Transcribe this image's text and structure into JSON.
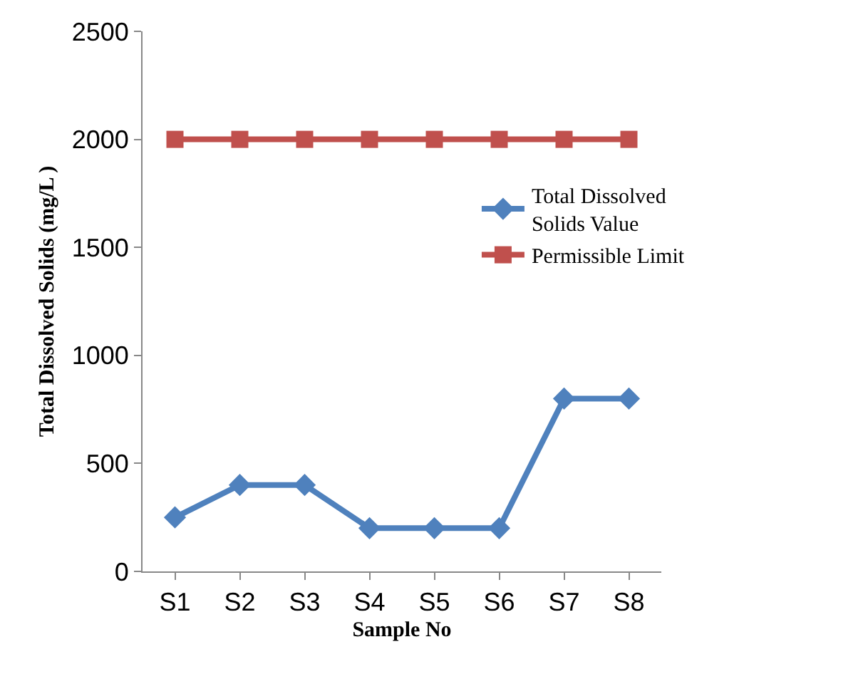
{
  "chart_data": {
    "type": "line",
    "xlabel": "Sample No",
    "ylabel": "Total Dissolved Solids (mg/L )",
    "categories": [
      "S1",
      "S2",
      "S3",
      "S4",
      "S5",
      "S6",
      "S7",
      "S8"
    ],
    "series": [
      {
        "name": "Total Dissolved Solids Value",
        "color": "#4f81bd",
        "marker": "diamond",
        "values": [
          250,
          400,
          400,
          200,
          200,
          200,
          800,
          800
        ]
      },
      {
        "name": "Permissible Limit",
        "color": "#c0504d",
        "marker": "square",
        "values": [
          2000,
          2000,
          2000,
          2000,
          2000,
          2000,
          2000,
          2000
        ]
      }
    ],
    "ylim": [
      0,
      2500
    ],
    "yticks": [
      0,
      500,
      1000,
      1500,
      2000,
      2500
    ],
    "legend": "right",
    "line_style": "solid"
  }
}
